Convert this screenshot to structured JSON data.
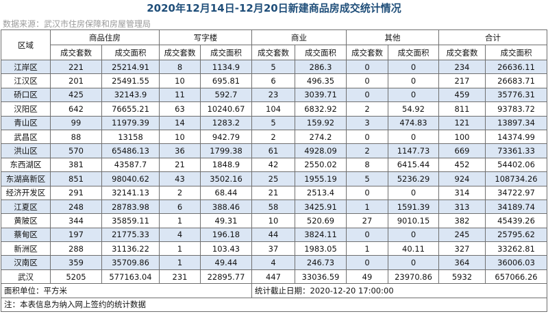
{
  "title": "2020年12月14日-12月20日新建商品房成交统计情况",
  "source": "数据来源：武汉市住房保障和房屋管理局",
  "header": {
    "district": "区域",
    "groups": [
      "商品住房",
      "写字楼",
      "商业",
      "其他",
      "合计"
    ],
    "sub": [
      "成交套数",
      "成交面积",
      "成交套数",
      "成交面积",
      "成交套数",
      "成交面积",
      "成交套数",
      "成交面积",
      "成交套数",
      "成交面积"
    ]
  },
  "rows": [
    [
      "江岸区",
      "221",
      "25214.91",
      "8",
      "1134.9",
      "5",
      "286.3",
      "0",
      "0",
      "234",
      "26636.11"
    ],
    [
      "江汉区",
      "201",
      "25491.55",
      "10",
      "695.81",
      "6",
      "496.35",
      "0",
      "0",
      "217",
      "26683.71"
    ],
    [
      "硚口区",
      "425",
      "32143.9",
      "11",
      "592.7",
      "23",
      "3039.71",
      "0",
      "0",
      "459",
      "35776.31"
    ],
    [
      "汉阳区",
      "642",
      "76655.21",
      "63",
      "10240.67",
      "104",
      "6832.92",
      "2",
      "54.92",
      "811",
      "93783.72"
    ],
    [
      "青山区",
      "99",
      "11979.39",
      "14",
      "1283.2",
      "5",
      "159.92",
      "3",
      "474.83",
      "121",
      "13897.34"
    ],
    [
      "武昌区",
      "88",
      "13158",
      "10",
      "942.79",
      "2",
      "274.2",
      "0",
      "0",
      "100",
      "14374.99"
    ],
    [
      "洪山区",
      "570",
      "65486.13",
      "36",
      "1799.38",
      "61",
      "4928.09",
      "2",
      "1147.73",
      "669",
      "73361.33"
    ],
    [
      "东西湖区",
      "381",
      "43587.7",
      "21",
      "1848.9",
      "42",
      "2550.02",
      "8",
      "6415.44",
      "452",
      "54402.06"
    ],
    [
      "东湖高新区",
      "851",
      "98040.62",
      "43",
      "3502.16",
      "25",
      "1955.19",
      "5",
      "5236.29",
      "924",
      "108734.26"
    ],
    [
      "经济开发区",
      "291",
      "32141.13",
      "2",
      "68.44",
      "21",
      "2513.4",
      "0",
      "0",
      "314",
      "34722.97"
    ],
    [
      "江夏区",
      "248",
      "28783.98",
      "6",
      "388.46",
      "58",
      "3425.91",
      "1",
      "1591.39",
      "313",
      "34189.74"
    ],
    [
      "黄陂区",
      "344",
      "35859.11",
      "1",
      "49.31",
      "10",
      "520.69",
      "27",
      "9010.15",
      "382",
      "45439.26"
    ],
    [
      "蔡甸区",
      "197",
      "21775.33",
      "4",
      "196.18",
      "44",
      "3824.11",
      "0",
      "0",
      "245",
      "25795.62"
    ],
    [
      "新洲区",
      "288",
      "31136.22",
      "1",
      "103.43",
      "37",
      "1983.05",
      "1",
      "40.11",
      "327",
      "33262.81"
    ],
    [
      "汉南区",
      "359",
      "35709.86",
      "1",
      "49.44",
      "4",
      "246.73",
      "0",
      "0",
      "364",
      "36006.03"
    ],
    [
      "武汉",
      "5205",
      "577163.04",
      "231",
      "22895.77",
      "447",
      "33036.59",
      "49",
      "23970.86",
      "5932",
      "657066.26"
    ]
  ],
  "footer": {
    "unit": "面积单位：平方米",
    "deadline": "统计截止日期：2020-12-20 17:00:00",
    "note": "注：本表信息为纳入网上签约的统计数据"
  },
  "colors": {
    "zebra": "#dbe6f4",
    "title": "#1f4e79",
    "border": "#6e6e6e"
  }
}
